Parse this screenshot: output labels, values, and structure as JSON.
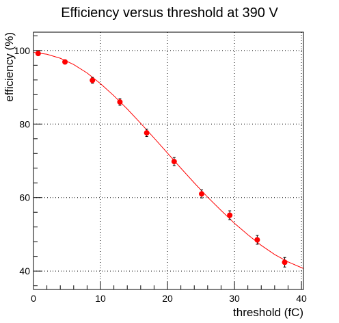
{
  "chart_data": {
    "type": "scatter",
    "title": "Efficiency versus threshold at 390 V",
    "xlabel": "threshold (fC)",
    "ylabel": "efficiency (%)",
    "xlim": [
      0,
      40.3
    ],
    "ylim": [
      35,
      105
    ],
    "x_ticks": [
      0,
      10,
      20,
      30,
      40
    ],
    "x_tick_labels": [
      "0",
      "10",
      "20",
      "30",
      "40"
    ],
    "y_ticks": [
      40,
      60,
      80,
      100
    ],
    "y_tick_labels": [
      "40",
      "60",
      "80",
      "100"
    ],
    "grid": true,
    "legend": "none",
    "colors": {
      "points": "#ff0000",
      "fit": "#ff0000",
      "errorbars": "#000000"
    },
    "series": [
      {
        "x": [
          0.7,
          4.7,
          8.8,
          12.9,
          16.9,
          21.0,
          25.1,
          29.3,
          33.4,
          37.5
        ],
        "y": [
          99.2,
          96.9,
          91.9,
          86.0,
          77.6,
          69.8,
          61.0,
          55.2,
          48.5,
          42.4
        ],
        "err": [
          0.4,
          0.5,
          0.8,
          0.9,
          1.0,
          1.1,
          1.1,
          1.2,
          1.2,
          1.3
        ]
      }
    ],
    "fit_curve": {
      "x": [
        0,
        2,
        4,
        6,
        8,
        10,
        12,
        14,
        16,
        18,
        20,
        22,
        24,
        26,
        28,
        30,
        32,
        34,
        36,
        38,
        40.3
      ],
      "y": [
        99.5,
        99.0,
        97.9,
        96.2,
        93.9,
        91.0,
        87.7,
        84.1,
        80.2,
        76.2,
        72.1,
        68.0,
        64.0,
        60.1,
        56.5,
        53.0,
        49.9,
        47.0,
        44.5,
        42.5,
        40.7
      ]
    }
  }
}
